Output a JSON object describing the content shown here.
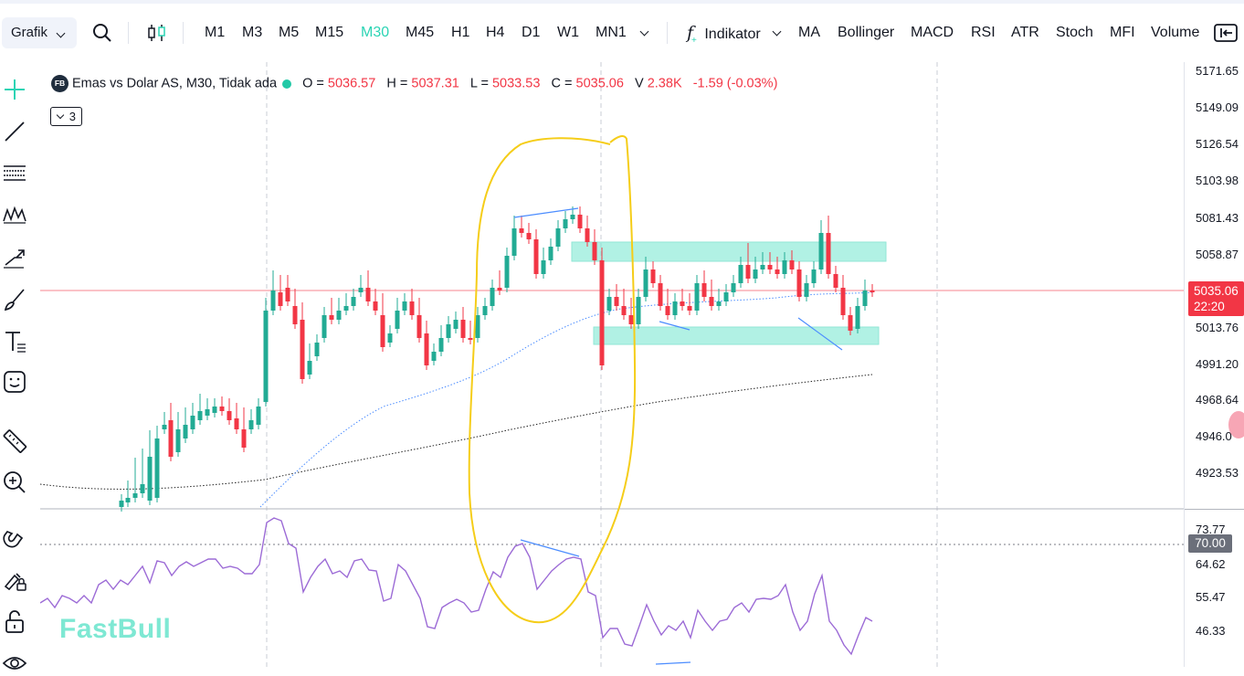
{
  "toolbar": {
    "chart_type": "Grafik",
    "timeframes": [
      "M1",
      "M3",
      "M5",
      "M15",
      "M30",
      "M45",
      "H1",
      "H4",
      "D1",
      "W1",
      "MN1"
    ],
    "active_timeframe": "M30",
    "indicator_label": "Indikator",
    "indicators": [
      "MA",
      "Bollinger",
      "MACD",
      "RSI",
      "ATR",
      "Stoch",
      "MFI",
      "Volume"
    ]
  },
  "legend": {
    "badge": "FB",
    "symbol": "Emas vs Dolar AS, M30, Tidak ada",
    "o_label": "O =",
    "o_value": "5036.57",
    "h_label": "H =",
    "h_value": "5037.31",
    "l_label": "L =",
    "l_value": "5033.53",
    "c_label": "C =",
    "c_value": "5035.06",
    "v_label": "V",
    "v_value": "2.38K",
    "change": "-1.59 (-0.03%)",
    "collapse_count": "3"
  },
  "price_axis": {
    "labels": [
      "5171.65",
      "5149.09",
      "5126.54",
      "5103.98",
      "5081.43",
      "5058.87",
      "5013.76",
      "4991.20",
      "4968.64",
      "4946.0",
      "4923.53"
    ],
    "current_price": "5035.06",
    "countdown": "22:20"
  },
  "rsi_axis": {
    "labels": [
      "73.77",
      "64.62",
      "55.47",
      "46.33"
    ],
    "level_tag": "70.00"
  },
  "logo": "FastBull",
  "colors": {
    "accent": "#2bd4b4",
    "bull": "#22ab94",
    "bear": "#f23645",
    "zone": "#7ee8d3",
    "annotation_yellow": "#f5cd19",
    "rsi_line": "#9c6bd6"
  }
}
